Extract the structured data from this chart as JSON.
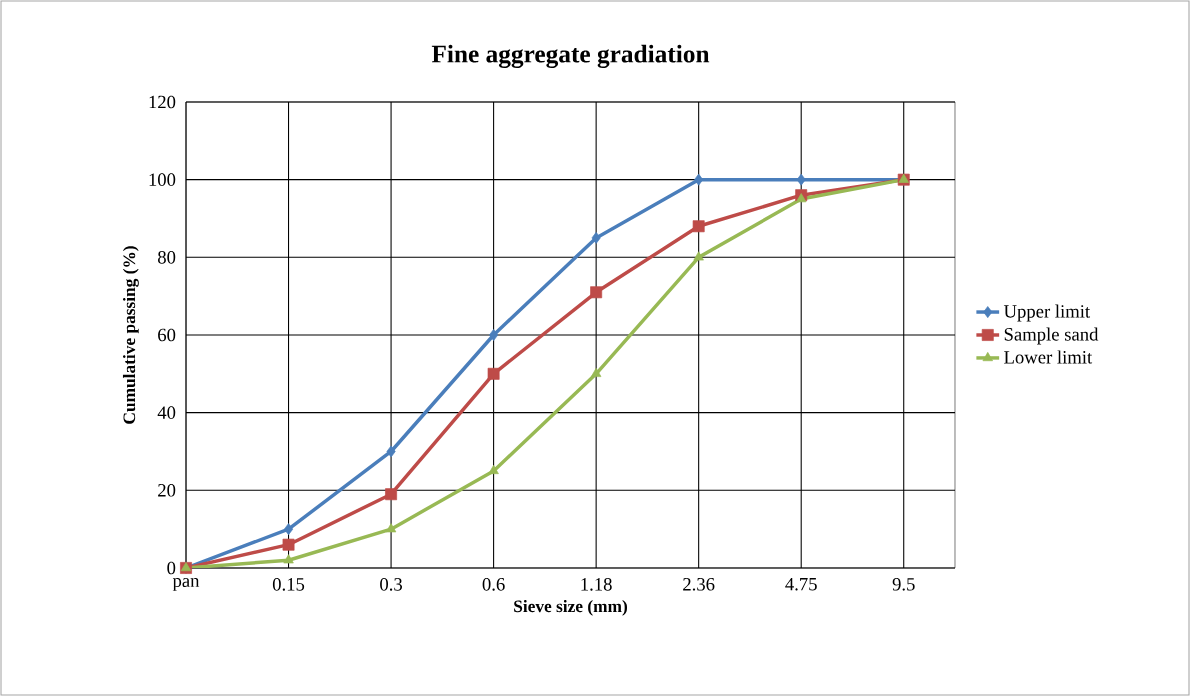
{
  "chart_data": {
    "type": "line",
    "title": "Fine aggregate gradiation",
    "xlabel": "Sieve size (mm)",
    "ylabel": "Cumulative passing (%)",
    "categories": [
      "pan",
      "0.15",
      "0.3",
      "0.6",
      "1.18",
      "2.36",
      "4.75",
      "9.5"
    ],
    "series": [
      {
        "name": "Upper limit",
        "color": "#4a7ebb",
        "marker": "diamond",
        "values": [
          0,
          10,
          30,
          60,
          85,
          100,
          100,
          100
        ]
      },
      {
        "name": "Sample sand",
        "color": "#be4b48",
        "marker": "square",
        "values": [
          0,
          6,
          19,
          50,
          71,
          88,
          96,
          100
        ]
      },
      {
        "name": "Lower limit",
        "color": "#98b954",
        "marker": "triangle",
        "values": [
          0,
          2,
          10,
          25,
          50,
          80,
          95,
          100
        ]
      }
    ],
    "ylim": [
      0,
      120
    ],
    "yticks": [
      0,
      20,
      40,
      60,
      80,
      100,
      120
    ],
    "grid": true,
    "legend": "right",
    "line_style": "solid"
  }
}
